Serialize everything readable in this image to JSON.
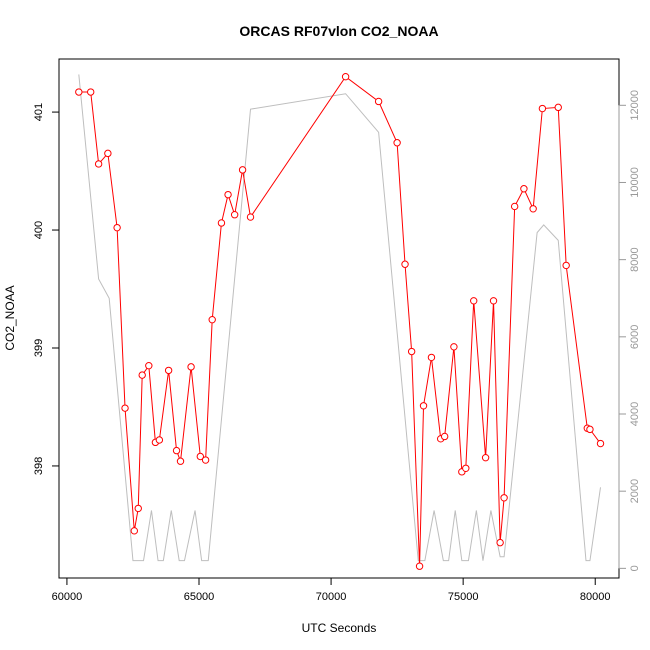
{
  "chart_data": {
    "type": "line",
    "title": "ORCAS RF07vlon CO2_NOAA",
    "xlabel": "UTC Seconds",
    "ylabel": "CO2_NOAA",
    "xlim": [
      59700,
      80900
    ],
    "ylim": [
      397.05,
      401.45
    ],
    "y2lim": [
      -250,
      13200
    ],
    "xticks": [
      60000,
      65000,
      70000,
      75000,
      80000
    ],
    "yticks": [
      398,
      399,
      400,
      401
    ],
    "y2ticks": [
      0,
      2000,
      4000,
      6000,
      8000,
      10000,
      12000
    ],
    "grid": false,
    "series": [
      {
        "role": "primary",
        "color": "#ff0000",
        "marker": "open-circle",
        "x": [
          60450,
          60900,
          61200,
          61550,
          61900,
          62200,
          62550,
          62700,
          62850,
          63100,
          63350,
          63500,
          63850,
          64150,
          64300,
          64700,
          65050,
          65250,
          65500,
          65850,
          66100,
          66350,
          66650,
          66950,
          70550,
          71800,
          72500,
          72800,
          73050,
          73350,
          73500,
          73800,
          74150,
          74300,
          74650,
          74950,
          75100,
          75400,
          75850,
          76150,
          76400,
          76550,
          76950,
          77300,
          77650,
          78000,
          78600,
          78900,
          79700,
          79800,
          80200
        ],
        "y": [
          401.17,
          401.17,
          400.56,
          400.65,
          400.02,
          398.49,
          397.45,
          397.64,
          398.77,
          398.85,
          398.2,
          398.22,
          398.81,
          398.13,
          398.04,
          398.84,
          398.08,
          398.05,
          399.24,
          400.06,
          400.3,
          400.13,
          400.51,
          400.11,
          401.3,
          401.09,
          400.74,
          399.71,
          398.97,
          397.15,
          398.51,
          398.92,
          398.23,
          398.25,
          399.01,
          397.95,
          397.98,
          399.4,
          398.07,
          399.4,
          397.35,
          397.73,
          400.2,
          400.35,
          400.18,
          401.03,
          401.04,
          399.7,
          398.32,
          398.31,
          398.19
        ]
      },
      {
        "role": "secondary",
        "color": "#bebebe",
        "marker": "none",
        "x": [
          60450,
          61200,
          61600,
          62500,
          62900,
          63200,
          63450,
          63650,
          63950,
          64250,
          64450,
          64850,
          65100,
          65350,
          66950,
          70550,
          71800,
          73300,
          73550,
          73900,
          74250,
          74450,
          74700,
          74950,
          75200,
          75500,
          75750,
          76050,
          76400,
          76550,
          77800,
          78050,
          78600,
          79650,
          79800,
          80200
        ],
        "y": [
          12800,
          7500,
          7000,
          200,
          200,
          1500,
          200,
          200,
          1500,
          200,
          200,
          1500,
          200,
          200,
          11900,
          12300,
          11300,
          200,
          200,
          1500,
          200,
          200,
          1500,
          200,
          200,
          1500,
          200,
          1500,
          300,
          300,
          8700,
          8900,
          8500,
          200,
          200,
          2100
        ]
      }
    ]
  }
}
